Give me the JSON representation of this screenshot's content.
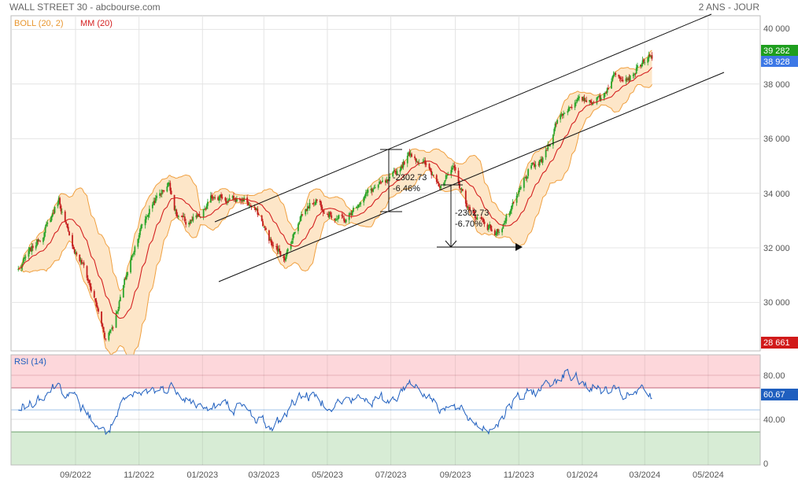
{
  "header": {
    "title": "WALL STREET 30 - abcbourse.com",
    "period": "2 ANS - JOUR"
  },
  "legend": {
    "boll": "BOLL (20, 2)",
    "mm": "MM (20)",
    "rsi": "RSI (14)"
  },
  "colors": {
    "boll_band": "#f0a040",
    "boll_fill": "#fde6c8",
    "mm": "#d42020",
    "candle_up": "#2aa52a",
    "candle_down": "#c41e1e",
    "rsi_line": "#1f5fbf",
    "overbought_fill": "#fdd7db",
    "oversold_fill": "#d7ecd5",
    "tag_green": "#1e9e1e",
    "tag_blue": "#3d78e6",
    "tag_red": "#d11a1a"
  },
  "price_axis": {
    "ticks": [
      "40 000",
      "38 000",
      "36 000",
      "34 000",
      "32 000",
      "30 000"
    ],
    "tag_high": "39 282",
    "tag_current": "38 928",
    "tag_low": "28 661"
  },
  "rsi_axis": {
    "ticks": [
      "80.00",
      "40.00",
      "0"
    ],
    "tag_value": "60.67"
  },
  "time_axis": {
    "ticks": [
      "09/2022",
      "11/2022",
      "01/2023",
      "03/2023",
      "05/2023",
      "07/2023",
      "09/2023",
      "11/2023",
      "01/2024",
      "03/2024",
      "05/2024"
    ]
  },
  "annotations": [
    {
      "value": "-2302.73",
      "pct": "-6.46%"
    },
    {
      "value": "-2302.73",
      "pct": "-6.70%"
    }
  ],
  "chart_data": {
    "type": "line",
    "series": [
      {
        "name": "WALL STREET 30",
        "dates": [
          "2022-07-08",
          "2022-07-22",
          "2022-08-05",
          "2022-08-16",
          "2022-08-26",
          "2022-09-09",
          "2022-09-20",
          "2022-09-30",
          "2022-10-07",
          "2022-10-20",
          "2022-11-01",
          "2022-11-15",
          "2022-11-30",
          "2022-12-07",
          "2022-12-16",
          "2022-12-30",
          "2023-01-13",
          "2023-01-27",
          "2023-02-10",
          "2023-02-24",
          "2023-03-10",
          "2023-03-22",
          "2023-04-05",
          "2023-04-20",
          "2023-05-05",
          "2023-05-19",
          "2023-06-02",
          "2023-06-16",
          "2023-06-30",
          "2023-07-20",
          "2023-08-03",
          "2023-08-17",
          "2023-08-31",
          "2023-09-15",
          "2023-09-28",
          "2023-10-10",
          "2023-10-27",
          "2023-11-10",
          "2023-11-24",
          "2023-12-08",
          "2023-12-22",
          "2024-01-05",
          "2024-01-19",
          "2024-02-02",
          "2024-02-16",
          "2024-03-01",
          "2024-03-08"
        ],
        "values": [
          31200,
          32000,
          32800,
          33800,
          32300,
          31300,
          30000,
          28700,
          29200,
          31000,
          32600,
          33700,
          34400,
          33200,
          32900,
          33100,
          34000,
          33700,
          33800,
          33200,
          32000,
          31700,
          33200,
          33800,
          33200,
          33000,
          33800,
          34200,
          34400,
          35500,
          35000,
          34400,
          34800,
          33300,
          33000,
          32500,
          33500,
          34800,
          35200,
          36700,
          37300,
          37400,
          37500,
          38400,
          38300,
          38900,
          38928
        ]
      }
    ],
    "rsi": {
      "name": "RSI (14)",
      "dates": [
        "2022-07-08",
        "2022-08-16",
        "2022-09-02",
        "2022-09-20",
        "2022-09-30",
        "2022-10-20",
        "2022-11-15",
        "2022-12-07",
        "2022-12-30",
        "2023-01-27",
        "2023-02-10",
        "2023-03-10",
        "2023-04-05",
        "2023-05-05",
        "2023-06-02",
        "2023-06-30",
        "2023-07-20",
        "2023-08-17",
        "2023-09-01",
        "2023-09-22",
        "2023-10-05",
        "2023-10-27",
        "2023-11-10",
        "2023-12-01",
        "2023-12-15",
        "2024-01-05",
        "2024-01-19",
        "2024-02-02",
        "2024-02-16",
        "2024-03-01",
        "2024-03-08"
      ],
      "values": [
        50,
        74,
        57,
        38,
        28,
        58,
        68,
        70,
        51,
        54,
        50,
        33,
        65,
        56,
        60,
        58,
        77,
        54,
        51,
        37,
        33,
        57,
        64,
        75,
        84,
        73,
        68,
        65,
        62,
        67,
        60.67
      ]
    },
    "xlim": [
      "2022-07-01",
      "2024-06-20"
    ],
    "ylim": [
      28661,
      40500
    ],
    "rsi_levels": [
      70,
      30
    ],
    "rsi_ylim": [
      0,
      100
    ],
    "grid": true
  }
}
